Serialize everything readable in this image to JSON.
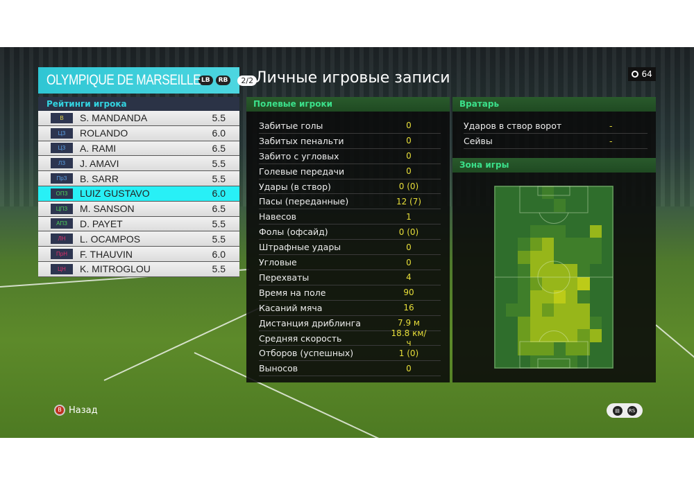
{
  "team": {
    "name": "OLYMPIQUE DE MARSEILLE",
    "lb": "LB",
    "rb": "RB",
    "page": "2/2"
  },
  "ratings_header": "Рейтинги игрока",
  "players": [
    {
      "pos": "В",
      "name": "S. MANDANDA",
      "rating": "5.5",
      "color": "#e6d64a"
    },
    {
      "pos": "ЦЗ",
      "name": "ROLANDO",
      "rating": "6.0",
      "color": "#5aa0e6"
    },
    {
      "pos": "ЦЗ",
      "name": "A. RAMI",
      "rating": "6.5",
      "color": "#5aa0e6"
    },
    {
      "pos": "ЛЗ",
      "name": "J. AMAVI",
      "rating": "5.5",
      "color": "#5aa0e6"
    },
    {
      "pos": "ПрЗ",
      "name": "B. SARR",
      "rating": "5.5",
      "color": "#5aa0e6"
    },
    {
      "pos": "ОПЗ",
      "name": "LUIZ GUSTAVO",
      "rating": "6.0",
      "color": "#4ed35a",
      "selected": true
    },
    {
      "pos": "ЦПЗ",
      "name": "M. SANSON",
      "rating": "6.5",
      "color": "#4ed35a"
    },
    {
      "pos": "АПЗ",
      "name": "D. PAYET",
      "rating": "5.5",
      "color": "#4ed35a"
    },
    {
      "pos": "ЛН",
      "name": "L. OCAMPOS",
      "rating": "5.5",
      "color": "#e0306a"
    },
    {
      "pos": "ПрН",
      "name": "F. THAUVIN",
      "rating": "6.0",
      "color": "#e0306a"
    },
    {
      "pos": "ЦН",
      "name": "K. MITROGLOU",
      "rating": "5.5",
      "color": "#e0306a"
    }
  ],
  "title": "Личные игровые записи",
  "timer": "64",
  "field": {
    "header": "Полевые игроки",
    "stats": [
      {
        "label": "Забитые голы",
        "value": "0"
      },
      {
        "label": "Забитых пенальти",
        "value": "0"
      },
      {
        "label": "Забито с угловых",
        "value": "0"
      },
      {
        "label": "Голевые передачи",
        "value": "0"
      },
      {
        "label": "Удары (в створ)",
        "value": "0 (0)"
      },
      {
        "label": "Пасы (переданные)",
        "value": "12 (7)"
      },
      {
        "label": "Навесов",
        "value": "1"
      },
      {
        "label": "Фолы (офсайд)",
        "value": "0 (0)"
      },
      {
        "label": "Штрафные удары",
        "value": "0"
      },
      {
        "label": "Угловые",
        "value": "0"
      },
      {
        "label": "Перехваты",
        "value": "4"
      },
      {
        "label": "Время на поле",
        "value": "90"
      },
      {
        "label": "Касаний мяча",
        "value": "16"
      },
      {
        "label": "Дистанция дриблинга",
        "value": "7.9 м"
      },
      {
        "label": "Средняя скорость",
        "value": "18.8 км/ч"
      },
      {
        "label": "Отборов (успешных)",
        "value": "1 (0)"
      },
      {
        "label": "Выносов",
        "value": "0"
      }
    ]
  },
  "goalkeeper": {
    "header": "Вратарь",
    "stats": [
      {
        "label": "Ударов в створ ворот",
        "value": "-"
      },
      {
        "label": "Сейвы",
        "value": "-"
      }
    ]
  },
  "zone": {
    "header": "Зона игры",
    "colors": [
      "#2f6e2c",
      "#3f7e2a",
      "#6c9c1e",
      "#97b61a",
      "#bccb18"
    ],
    "heatmap": [
      [
        0,
        0,
        0,
        0,
        1,
        0,
        0,
        0,
        0,
        0
      ],
      [
        0,
        0,
        0,
        0,
        0,
        1,
        0,
        0,
        0,
        0
      ],
      [
        0,
        0,
        0,
        0,
        0,
        0,
        0,
        0,
        0,
        0
      ],
      [
        0,
        0,
        0,
        1,
        1,
        1,
        0,
        0,
        3,
        0
      ],
      [
        0,
        0,
        1,
        2,
        3,
        1,
        1,
        1,
        1,
        0
      ],
      [
        0,
        0,
        2,
        3,
        3,
        1,
        1,
        1,
        1,
        0
      ],
      [
        0,
        0,
        1,
        3,
        3,
        3,
        3,
        1,
        0,
        0
      ],
      [
        0,
        0,
        1,
        2,
        3,
        3,
        3,
        4,
        0,
        0
      ],
      [
        0,
        0,
        1,
        3,
        3,
        4,
        3,
        1,
        0,
        0
      ],
      [
        0,
        1,
        1,
        3,
        2,
        3,
        3,
        3,
        0,
        0
      ],
      [
        0,
        0,
        2,
        3,
        3,
        3,
        3,
        3,
        1,
        0
      ],
      [
        0,
        0,
        2,
        3,
        3,
        3,
        3,
        2,
        3,
        0
      ],
      [
        0,
        0,
        2,
        2,
        2,
        1,
        2,
        2,
        0,
        0
      ],
      [
        0,
        0,
        0,
        1,
        1,
        1,
        1,
        0,
        0,
        0
      ]
    ]
  },
  "footer": {
    "back_label": "Назад",
    "back_button": "B",
    "icons": [
      "chat-icon",
      "rs-icon"
    ]
  }
}
